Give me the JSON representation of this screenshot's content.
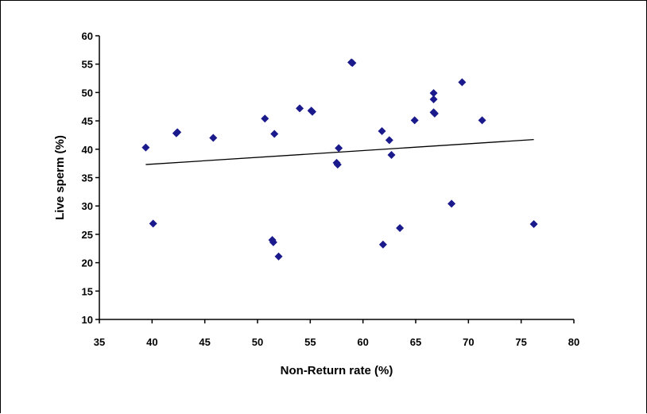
{
  "chart_data": {
    "type": "scatter",
    "title": "",
    "xlabel": "Non-Return rate (%)",
    "ylabel": "Live sperm (%)",
    "xlim": [
      35,
      80
    ],
    "ylim": [
      10,
      60
    ],
    "x_ticks": [
      35,
      40,
      45,
      50,
      55,
      60,
      65,
      70,
      75,
      80
    ],
    "y_ticks": [
      10,
      15,
      20,
      25,
      30,
      35,
      40,
      45,
      50,
      55,
      60
    ],
    "grid": false,
    "legend": "none",
    "marker_color": "#1a1a8c",
    "trendline": {
      "type": "linear",
      "x": [
        39.4,
        76.2
      ],
      "y": [
        37.3,
        41.7
      ]
    },
    "points": [
      {
        "x": 39.4,
        "y": 40.3
      },
      {
        "x": 40.1,
        "y": 26.9
      },
      {
        "x": 42.3,
        "y": 42.8
      },
      {
        "x": 42.4,
        "y": 43.0
      },
      {
        "x": 45.8,
        "y": 42.0
      },
      {
        "x": 50.7,
        "y": 45.4
      },
      {
        "x": 51.4,
        "y": 24.0
      },
      {
        "x": 51.5,
        "y": 23.6
      },
      {
        "x": 51.6,
        "y": 42.7
      },
      {
        "x": 52.0,
        "y": 21.1
      },
      {
        "x": 54.0,
        "y": 47.2
      },
      {
        "x": 55.1,
        "y": 46.8
      },
      {
        "x": 55.2,
        "y": 46.6
      },
      {
        "x": 57.5,
        "y": 37.6
      },
      {
        "x": 57.6,
        "y": 37.3
      },
      {
        "x": 57.7,
        "y": 40.2
      },
      {
        "x": 58.9,
        "y": 55.3
      },
      {
        "x": 59.0,
        "y": 55.2
      },
      {
        "x": 61.8,
        "y": 43.2
      },
      {
        "x": 61.9,
        "y": 23.2
      },
      {
        "x": 62.5,
        "y": 41.6
      },
      {
        "x": 62.7,
        "y": 39.0
      },
      {
        "x": 63.5,
        "y": 26.1
      },
      {
        "x": 64.9,
        "y": 45.1
      },
      {
        "x": 66.7,
        "y": 49.9
      },
      {
        "x": 66.7,
        "y": 48.8
      },
      {
        "x": 66.7,
        "y": 46.5
      },
      {
        "x": 66.8,
        "y": 46.3
      },
      {
        "x": 68.4,
        "y": 30.4
      },
      {
        "x": 69.4,
        "y": 51.8
      },
      {
        "x": 71.3,
        "y": 45.1
      },
      {
        "x": 76.2,
        "y": 26.8
      }
    ]
  }
}
